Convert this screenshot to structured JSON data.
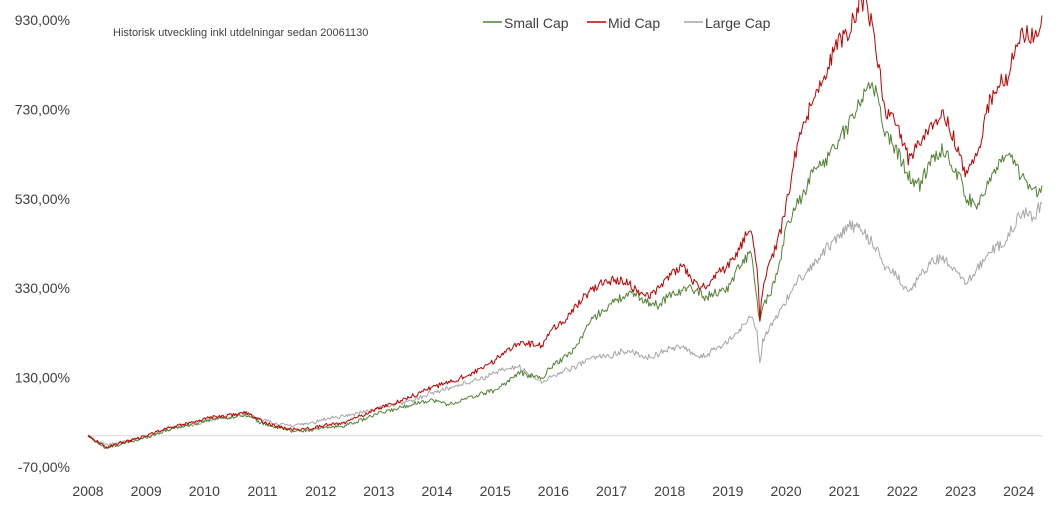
{
  "chart_data": {
    "type": "line",
    "title": "",
    "subtitle": "Historisk utveckling inkl utdelningar sedan 20061130",
    "xlabel": "",
    "ylabel": "",
    "x_tick_labels": [
      "2008",
      "2009",
      "2010",
      "2011",
      "2012",
      "2013",
      "2014",
      "2015",
      "2016",
      "2017",
      "2018",
      "2019",
      "2020",
      "2021",
      "2022",
      "2023",
      "2024"
    ],
    "y_tick_labels": [
      "-70,00%",
      "130,00%",
      "330,00%",
      "530,00%",
      "730,00%",
      "930,00%"
    ],
    "y_ticks": [
      -70,
      130,
      330,
      530,
      730,
      930
    ],
    "ylim": [
      -70,
      930
    ],
    "xlim": [
      2008.0,
      2024.4
    ],
    "zero_line": true,
    "grid": false,
    "legend_position": "top-center",
    "series": [
      {
        "name": "Small Cap",
        "color": "#548235",
        "x": [
          2008.0,
          2008.3,
          2008.6,
          2008.9,
          2009.2,
          2009.5,
          2009.8,
          2010.1,
          2010.4,
          2010.7,
          2010.95,
          2011.2,
          2011.5,
          2011.8,
          2012.1,
          2012.4,
          2012.7,
          2013.0,
          2013.3,
          2013.6,
          2013.9,
          2014.2,
          2014.5,
          2014.8,
          2015.0,
          2015.2,
          2015.4,
          2015.6,
          2015.8,
          2016.0,
          2016.2,
          2016.4,
          2016.6,
          2016.8,
          2017.0,
          2017.2,
          2017.4,
          2017.6,
          2017.8,
          2018.0,
          2018.2,
          2018.4,
          2018.6,
          2018.8,
          2019.0,
          2019.2,
          2019.4,
          2019.5,
          2019.55,
          2019.6,
          2019.7,
          2019.85,
          2020.0,
          2020.15,
          2020.3,
          2020.5,
          2020.7,
          2020.9,
          2021.1,
          2021.3,
          2021.5,
          2021.7,
          2021.9,
          2022.1,
          2022.3,
          2022.5,
          2022.7,
          2022.9,
          2023.0,
          2023.1,
          2023.3,
          2023.5,
          2023.7,
          2023.8,
          2023.95,
          2024.1,
          2024.25,
          2024.4
        ],
        "values": [
          0,
          -28,
          -18,
          -8,
          5,
          18,
          25,
          38,
          40,
          48,
          30,
          20,
          10,
          12,
          18,
          22,
          35,
          50,
          60,
          72,
          80,
          70,
          82,
          95,
          102,
          120,
          140,
          135,
          128,
          160,
          175,
          200,
          250,
          275,
          295,
          312,
          318,
          300,
          292,
          315,
          325,
          330,
          310,
          320,
          330,
          380,
          410,
          300,
          250,
          290,
          310,
          360,
          460,
          510,
          540,
          600,
          620,
          660,
          700,
          760,
          790,
          680,
          640,
          580,
          560,
          620,
          640,
          600,
          570,
          530,
          520,
          570,
          610,
          630,
          600,
          570,
          540,
          560
        ]
      },
      {
        "name": "Mid Cap",
        "color": "#c00000",
        "x": [
          2008.0,
          2008.3,
          2008.6,
          2008.9,
          2009.2,
          2009.5,
          2009.8,
          2010.1,
          2010.4,
          2010.7,
          2010.95,
          2011.2,
          2011.5,
          2011.8,
          2012.1,
          2012.4,
          2012.7,
          2013.0,
          2013.3,
          2013.6,
          2013.9,
          2014.2,
          2014.5,
          2014.8,
          2015.0,
          2015.2,
          2015.4,
          2015.6,
          2015.8,
          2016.0,
          2016.2,
          2016.4,
          2016.6,
          2016.8,
          2017.0,
          2017.2,
          2017.4,
          2017.6,
          2017.8,
          2018.0,
          2018.2,
          2018.4,
          2018.6,
          2018.8,
          2019.0,
          2019.2,
          2019.4,
          2019.5,
          2019.55,
          2019.6,
          2019.7,
          2019.85,
          2020.0,
          2020.15,
          2020.3,
          2020.5,
          2020.7,
          2020.9,
          2021.1,
          2021.3,
          2021.5,
          2021.7,
          2021.9,
          2022.1,
          2022.3,
          2022.5,
          2022.7,
          2022.9,
          2023.0,
          2023.1,
          2023.3,
          2023.5,
          2023.7,
          2023.8,
          2023.95,
          2024.1,
          2024.25,
          2024.4
        ],
        "values": [
          0,
          -26,
          -15,
          -5,
          10,
          22,
          30,
          42,
          45,
          52,
          35,
          22,
          14,
          16,
          24,
          28,
          45,
          62,
          75,
          90,
          108,
          118,
          135,
          150,
          170,
          190,
          210,
          205,
          200,
          240,
          260,
          290,
          320,
          340,
          348,
          345,
          330,
          310,
          330,
          360,
          380,
          345,
          330,
          360,
          380,
          420,
          470,
          380,
          260,
          330,
          380,
          430,
          510,
          620,
          700,
          760,
          820,
          880,
          910,
          980,
          920,
          720,
          700,
          620,
          660,
          700,
          720,
          660,
          620,
          580,
          640,
          750,
          790,
          800,
          880,
          900,
          890,
          940
        ]
      },
      {
        "name": "Large Cap",
        "color": "#a6a6a6",
        "x": [
          2008.0,
          2008.3,
          2008.6,
          2008.9,
          2009.2,
          2009.5,
          2009.8,
          2010.1,
          2010.4,
          2010.7,
          2010.95,
          2011.2,
          2011.5,
          2011.8,
          2012.1,
          2012.4,
          2012.7,
          2013.0,
          2013.3,
          2013.6,
          2013.9,
          2014.2,
          2014.5,
          2014.8,
          2015.0,
          2015.2,
          2015.4,
          2015.6,
          2015.8,
          2016.0,
          2016.2,
          2016.4,
          2016.6,
          2016.8,
          2017.0,
          2017.2,
          2017.4,
          2017.6,
          2017.8,
          2018.0,
          2018.2,
          2018.4,
          2018.6,
          2018.8,
          2019.0,
          2019.2,
          2019.4,
          2019.5,
          2019.55,
          2019.6,
          2019.7,
          2019.85,
          2020.0,
          2020.15,
          2020.3,
          2020.5,
          2020.7,
          2020.9,
          2021.1,
          2021.3,
          2021.5,
          2021.7,
          2021.9,
          2022.1,
          2022.3,
          2022.5,
          2022.7,
          2022.9,
          2023.0,
          2023.1,
          2023.3,
          2023.5,
          2023.7,
          2023.8,
          2023.95,
          2024.1,
          2024.25,
          2024.4
        ],
        "values": [
          0,
          -22,
          -14,
          -6,
          8,
          18,
          24,
          35,
          40,
          50,
          38,
          28,
          22,
          26,
          38,
          44,
          52,
          62,
          70,
          80,
          96,
          106,
          118,
          130,
          140,
          150,
          155,
          135,
          120,
          135,
          145,
          155,
          170,
          178,
          180,
          190,
          185,
          176,
          182,
          195,
          200,
          180,
          178,
          196,
          210,
          235,
          270,
          240,
          160,
          210,
          240,
          270,
          300,
          340,
          360,
          390,
          420,
          445,
          470,
          460,
          430,
          380,
          360,
          320,
          355,
          390,
          395,
          370,
          350,
          340,
          375,
          410,
          430,
          440,
          480,
          500,
          490,
          520
        ]
      }
    ]
  }
}
